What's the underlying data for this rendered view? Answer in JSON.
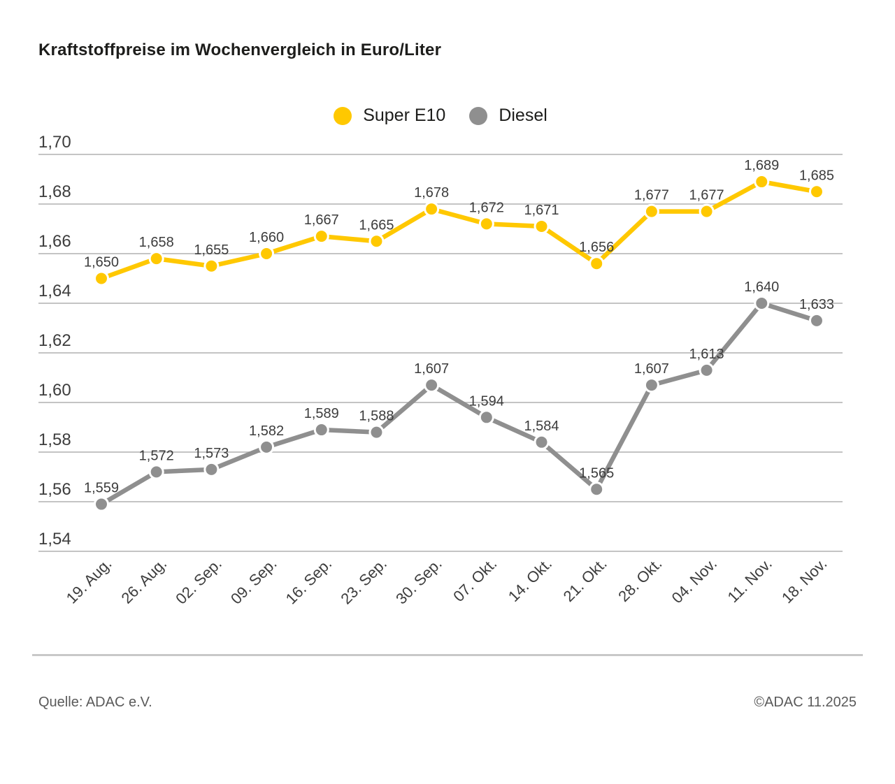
{
  "title": "Kraftstoffpreise im Wochenvergleich in Euro/Liter",
  "legend": [
    {
      "label": "Super E10",
      "color": "#FFC800"
    },
    {
      "label": "Diesel",
      "color": "#8F8F8F"
    }
  ],
  "footer": {
    "source": "Quelle: ADAC e.V.",
    "copyright": "©ADAC 11.2025"
  },
  "chart_data": {
    "type": "line",
    "title": "Kraftstoffpreise im Wochenvergleich in Euro/Liter",
    "xlabel": "",
    "ylabel": "Euro/Liter",
    "ylim": [
      1.54,
      1.7
    ],
    "grid": true,
    "legend_position": "top",
    "categories": [
      "19. Aug.",
      "26. Aug.",
      "02. Sep.",
      "09. Sep.",
      "16. Sep.",
      "23. Sep.",
      "30. Sep.",
      "07. Okt.",
      "14. Okt.",
      "21. Okt.",
      "28. Okt.",
      "04. Nov.",
      "11. Nov.",
      "18. Nov."
    ],
    "yticks": [
      "1,70",
      "1,68",
      "1,66",
      "1,64",
      "1,62",
      "1,60",
      "1,58",
      "1,56",
      "1,54"
    ],
    "series": [
      {
        "name": "Super E10",
        "color": "#FFC800",
        "values": [
          1.65,
          1.658,
          1.655,
          1.66,
          1.667,
          1.665,
          1.678,
          1.672,
          1.671,
          1.656,
          1.677,
          1.677,
          1.689,
          1.685
        ]
      },
      {
        "name": "Diesel",
        "color": "#8F8F8F",
        "values": [
          1.559,
          1.572,
          1.573,
          1.582,
          1.589,
          1.588,
          1.607,
          1.594,
          1.584,
          1.565,
          1.607,
          1.613,
          1.64,
          1.633
        ]
      }
    ],
    "colors": {
      "grid": "#C4C4C4",
      "marker_ring": "#FFFFFF"
    }
  }
}
